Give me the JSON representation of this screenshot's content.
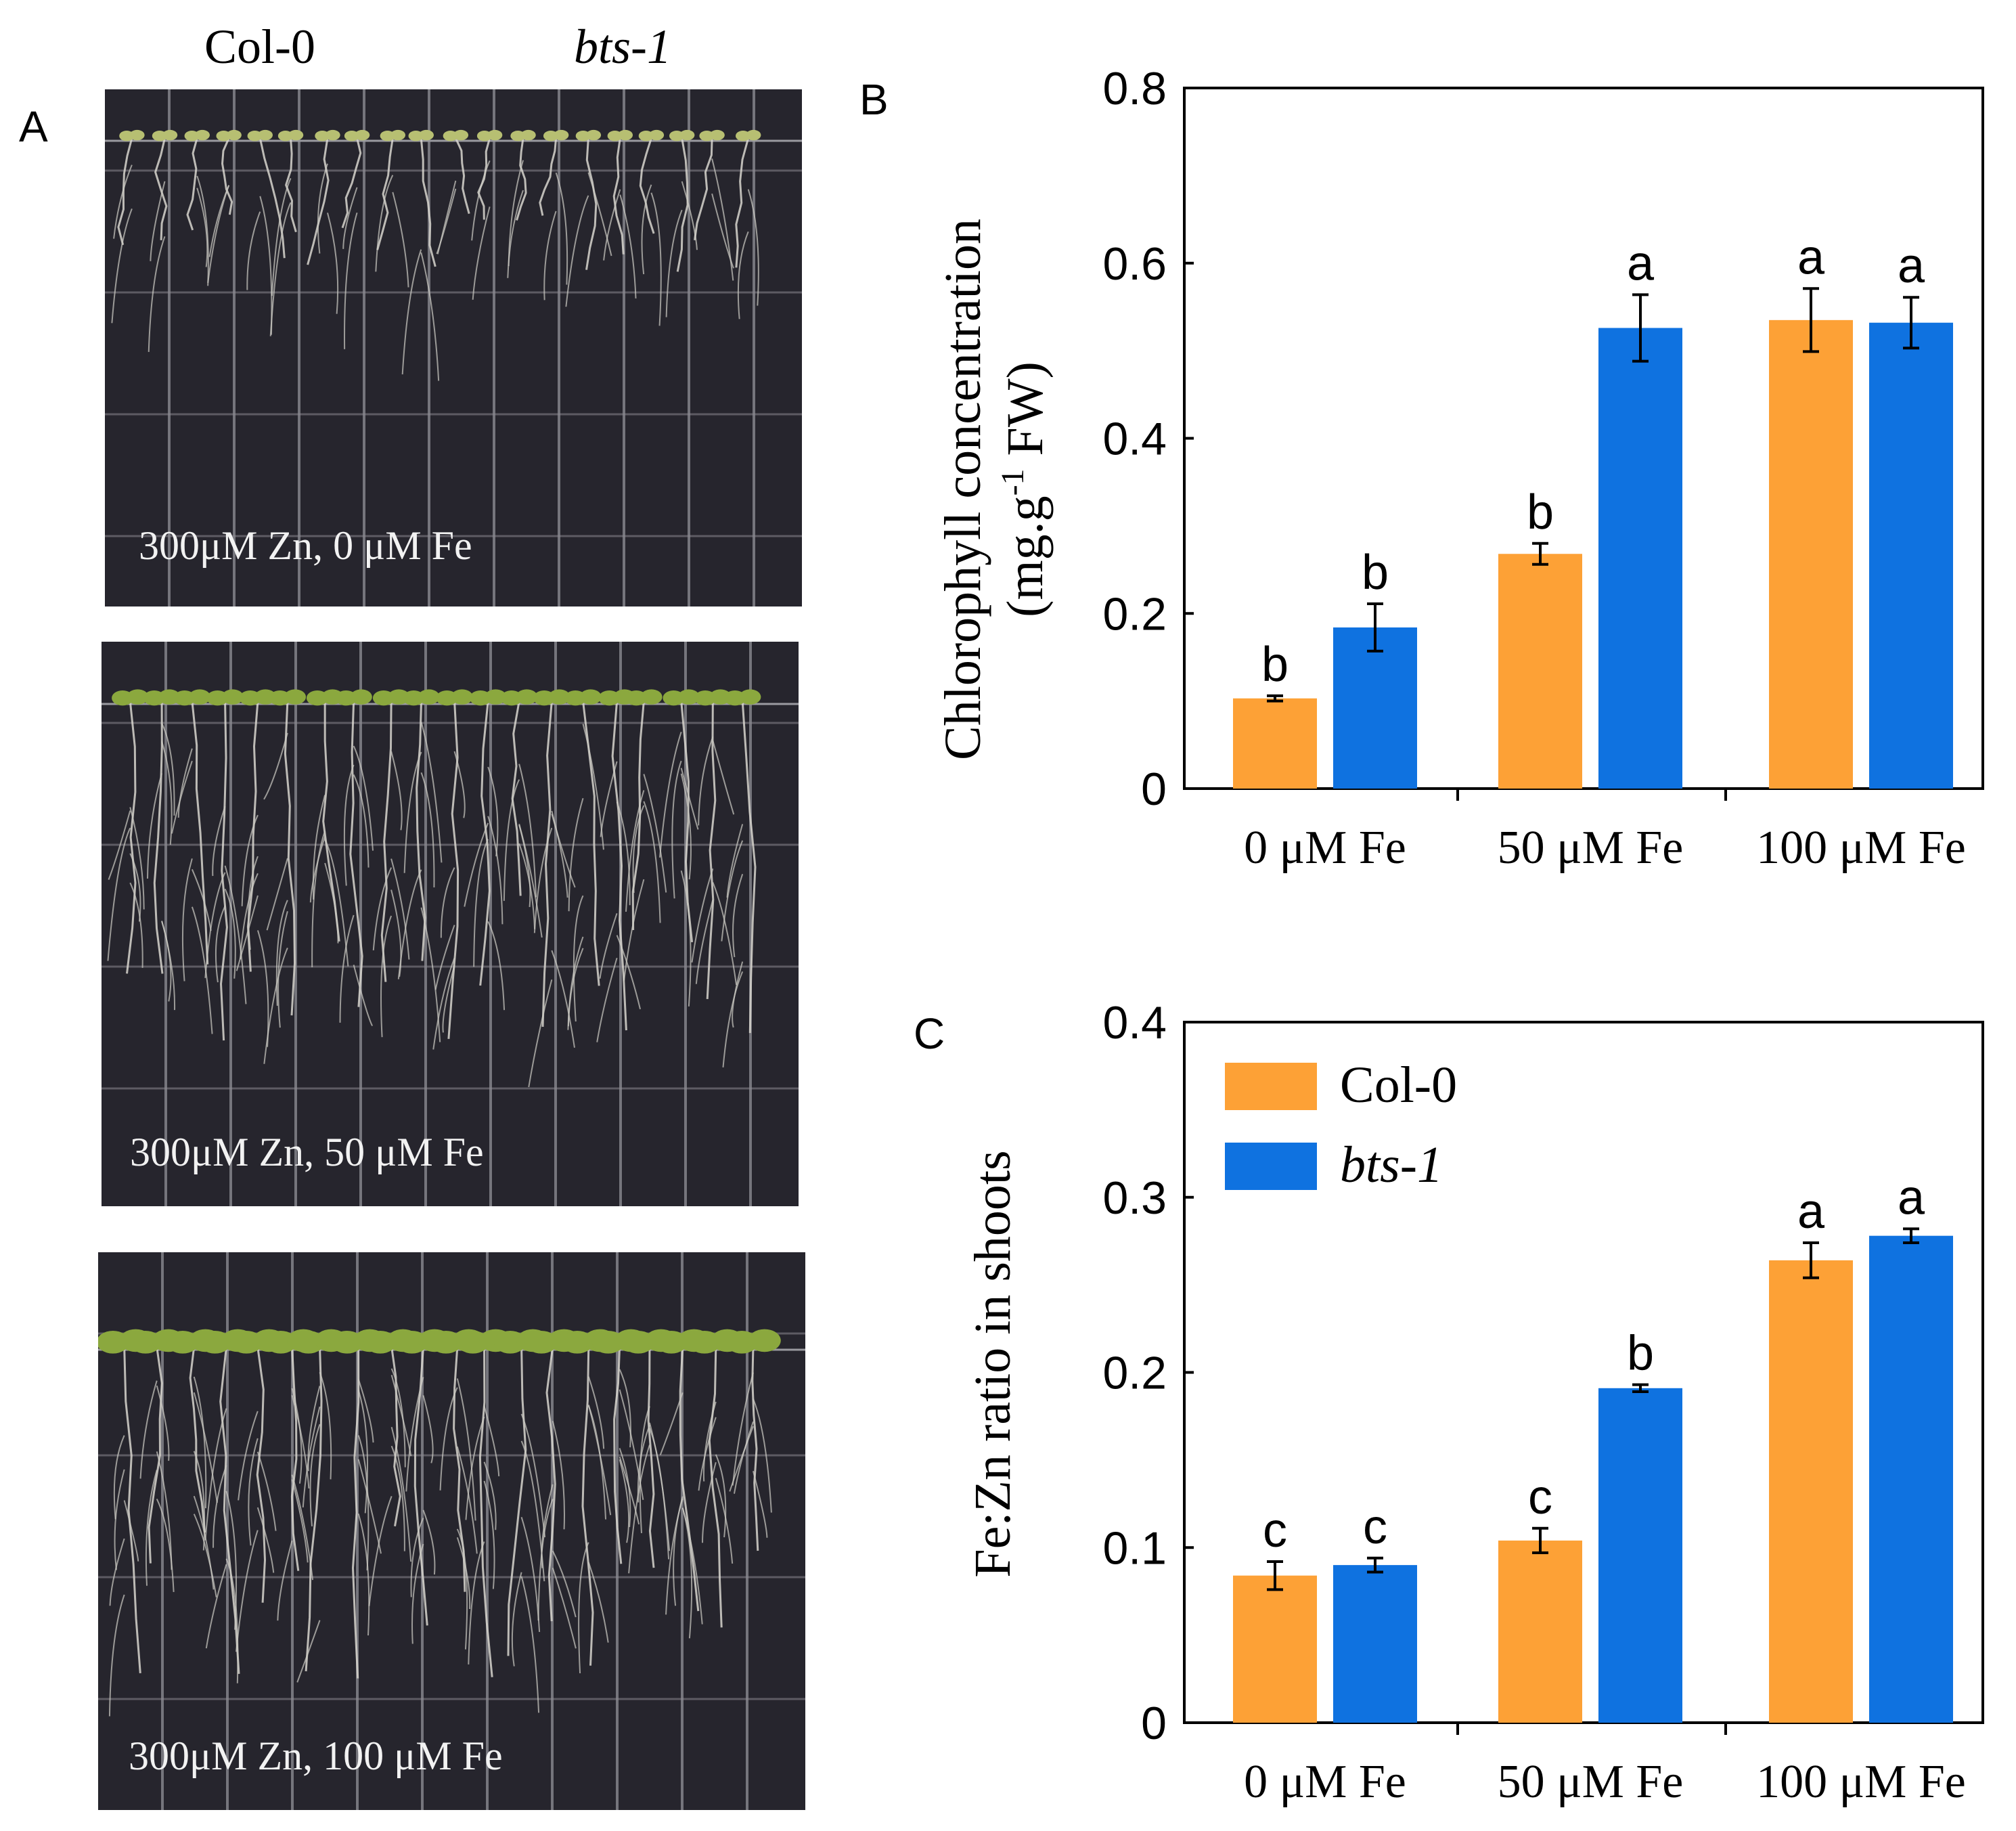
{
  "panel_letters": {
    "a": "A",
    "b": "B",
    "c": "C"
  },
  "photo_panel": {
    "genotype_col": "Col-0",
    "genotype_bts": "bts-1",
    "captions": [
      "300μM Zn, 0 μM Fe",
      "300μM Zn, 50 μM Fe",
      "300μM Zn, 100 μM Fe"
    ]
  },
  "colors": {
    "col0": "#fda136",
    "bts1": "#0f72e0",
    "photo_bg": "#26252d",
    "grid": "#8a8990"
  },
  "chart_data": [
    {
      "type": "bar",
      "panel": "B",
      "categories": [
        "0 μM Fe",
        "50 μM Fe",
        "100 μM Fe"
      ],
      "ylabel_line1": "Chlorophyll concentration",
      "ylabel_line2_pre": "(mg.g",
      "ylabel_sup": "-1",
      "ylabel_line2_post": " FW)",
      "ylim": [
        0,
        0.8
      ],
      "yticks": [
        0,
        0.2,
        0.4,
        0.6,
        0.8
      ],
      "ytick_labels": [
        "0",
        "0.2",
        "0.4",
        "0.6",
        "0.8"
      ],
      "series": [
        {
          "name": "Col-0",
          "values": [
            0.103,
            0.268,
            0.535
          ],
          "errors": [
            0.003,
            0.012,
            0.036
          ],
          "letters": [
            "b",
            "b",
            "a"
          ]
        },
        {
          "name": "bts-1",
          "values": [
            0.184,
            0.526,
            0.532
          ],
          "errors": [
            0.027,
            0.038,
            0.029
          ],
          "letters": [
            "b",
            "a",
            "a"
          ]
        }
      ]
    },
    {
      "type": "bar",
      "panel": "C",
      "categories": [
        "0 μM Fe",
        "50 μM Fe",
        "100 μM Fe"
      ],
      "ylabel": "Fe:Zn ratio in shoots",
      "ylim": [
        0,
        0.4
      ],
      "yticks": [
        0,
        0.1,
        0.2,
        0.3,
        0.4
      ],
      "ytick_labels": [
        "0",
        "0.1",
        "0.2",
        "0.3",
        "0.4"
      ],
      "legend": [
        "Col-0",
        "bts-1"
      ],
      "series": [
        {
          "name": "Col-0",
          "values": [
            0.084,
            0.104,
            0.264
          ],
          "errors": [
            0.008,
            0.007,
            0.01
          ],
          "letters": [
            "c",
            "c",
            "a"
          ]
        },
        {
          "name": "bts-1",
          "values": [
            0.09,
            0.191,
            0.278
          ],
          "errors": [
            0.004,
            0.002,
            0.004
          ],
          "letters": [
            "c",
            "b",
            "a"
          ]
        }
      ]
    }
  ]
}
